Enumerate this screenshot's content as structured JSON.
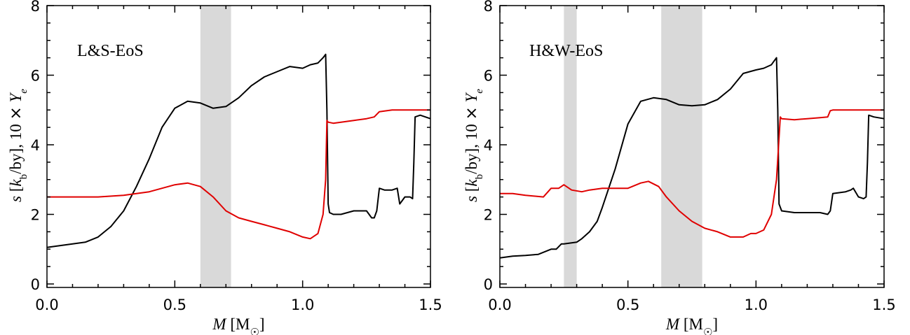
{
  "chart_data": [
    {
      "type": "line",
      "panel_label": "L&S-EoS",
      "xlabel": "M [M☉]",
      "ylabel": "s [k_b/by], 10 × Y_e",
      "xlim": [
        0.0,
        1.5
      ],
      "ylim": [
        -0.1,
        8.0
      ],
      "xticks": [
        "0.0",
        "0.5",
        "1.0",
        "1.5"
      ],
      "yticks": [
        "0",
        "2",
        "4",
        "6",
        "8"
      ],
      "grid": false,
      "shaded_regions": [
        [
          0.6,
          0.72
        ]
      ],
      "series": [
        {
          "color": "#000000",
          "x": [
            0.0,
            0.05,
            0.1,
            0.15,
            0.2,
            0.25,
            0.3,
            0.35,
            0.4,
            0.45,
            0.5,
            0.55,
            0.6,
            0.65,
            0.7,
            0.75,
            0.8,
            0.85,
            0.9,
            0.95,
            1.0,
            1.03,
            1.06,
            1.08,
            1.09,
            1.095,
            1.1,
            1.105,
            1.12,
            1.15,
            1.2,
            1.25,
            1.27,
            1.28,
            1.29,
            1.3,
            1.32,
            1.35,
            1.37,
            1.38,
            1.4,
            1.42,
            1.43,
            1.435,
            1.44,
            1.46,
            1.5
          ],
          "y": [
            1.05,
            1.1,
            1.15,
            1.2,
            1.35,
            1.65,
            2.1,
            2.8,
            3.6,
            4.5,
            5.05,
            5.25,
            5.2,
            5.05,
            5.1,
            5.35,
            5.7,
            5.95,
            6.1,
            6.25,
            6.2,
            6.3,
            6.35,
            6.5,
            6.6,
            5.0,
            2.3,
            2.05,
            2.0,
            2.0,
            2.1,
            2.1,
            1.9,
            1.9,
            2.1,
            2.75,
            2.7,
            2.7,
            2.75,
            2.3,
            2.5,
            2.5,
            2.45,
            3.5,
            4.8,
            4.85,
            4.75
          ]
        },
        {
          "color": "#e00000",
          "x": [
            0.0,
            0.1,
            0.2,
            0.3,
            0.35,
            0.4,
            0.45,
            0.5,
            0.55,
            0.6,
            0.65,
            0.7,
            0.75,
            0.8,
            0.85,
            0.9,
            0.95,
            1.0,
            1.03,
            1.06,
            1.08,
            1.09,
            1.095,
            1.1,
            1.12,
            1.15,
            1.2,
            1.25,
            1.28,
            1.3,
            1.35,
            1.4,
            1.45,
            1.5
          ],
          "y": [
            2.5,
            2.5,
            2.5,
            2.55,
            2.6,
            2.65,
            2.75,
            2.85,
            2.9,
            2.8,
            2.5,
            2.1,
            1.9,
            1.8,
            1.7,
            1.6,
            1.5,
            1.35,
            1.3,
            1.45,
            2.0,
            3.0,
            4.7,
            4.65,
            4.62,
            4.65,
            4.7,
            4.75,
            4.8,
            4.95,
            5.0,
            5.0,
            5.0,
            5.0
          ]
        }
      ]
    },
    {
      "type": "line",
      "panel_label": "H&W-EoS",
      "xlabel": "M [M☉]",
      "ylabel": "s [k_b/by], 10 × Y_e",
      "xlim": [
        0.0,
        1.5
      ],
      "ylim": [
        -0.1,
        8.0
      ],
      "xticks": [
        "0.0",
        "0.5",
        "1.0",
        "1.5"
      ],
      "yticks": [
        "0",
        "2",
        "4",
        "6",
        "8"
      ],
      "grid": false,
      "shaded_regions": [
        [
          0.25,
          0.3
        ],
        [
          0.63,
          0.79
        ]
      ],
      "series": [
        {
          "color": "#000000",
          "x": [
            0.0,
            0.05,
            0.1,
            0.15,
            0.2,
            0.22,
            0.24,
            0.25,
            0.3,
            0.32,
            0.35,
            0.38,
            0.4,
            0.45,
            0.5,
            0.55,
            0.6,
            0.65,
            0.7,
            0.75,
            0.8,
            0.85,
            0.9,
            0.95,
            1.0,
            1.03,
            1.06,
            1.07,
            1.08,
            1.085,
            1.09,
            1.1,
            1.15,
            1.2,
            1.25,
            1.28,
            1.29,
            1.3,
            1.35,
            1.37,
            1.38,
            1.4,
            1.42,
            1.43,
            1.435,
            1.44,
            1.46,
            1.5
          ],
          "y": [
            0.75,
            0.8,
            0.82,
            0.85,
            1.0,
            1.0,
            1.15,
            1.15,
            1.2,
            1.3,
            1.5,
            1.8,
            2.2,
            3.3,
            4.6,
            5.25,
            5.35,
            5.3,
            5.15,
            5.12,
            5.15,
            5.3,
            5.6,
            6.05,
            6.15,
            6.2,
            6.3,
            6.4,
            6.5,
            5.0,
            2.3,
            2.1,
            2.05,
            2.05,
            2.05,
            2.0,
            2.1,
            2.6,
            2.65,
            2.7,
            2.75,
            2.5,
            2.45,
            2.5,
            3.5,
            4.85,
            4.8,
            4.75
          ]
        },
        {
          "color": "#e00000",
          "x": [
            0.0,
            0.05,
            0.1,
            0.17,
            0.2,
            0.23,
            0.25,
            0.28,
            0.32,
            0.35,
            0.4,
            0.45,
            0.5,
            0.55,
            0.58,
            0.62,
            0.65,
            0.7,
            0.75,
            0.8,
            0.85,
            0.9,
            0.95,
            0.98,
            1.0,
            1.03,
            1.06,
            1.08,
            1.09,
            1.095,
            1.1,
            1.15,
            1.2,
            1.25,
            1.28,
            1.29,
            1.3,
            1.35,
            1.4,
            1.45,
            1.5
          ],
          "y": [
            2.6,
            2.6,
            2.55,
            2.5,
            2.75,
            2.75,
            2.85,
            2.7,
            2.65,
            2.7,
            2.75,
            2.75,
            2.75,
            2.9,
            2.95,
            2.8,
            2.5,
            2.1,
            1.8,
            1.6,
            1.5,
            1.35,
            1.35,
            1.45,
            1.45,
            1.55,
            2.0,
            3.0,
            4.2,
            4.8,
            4.75,
            4.72,
            4.75,
            4.78,
            4.8,
            4.98,
            5.0,
            5.0,
            5.0,
            5.0,
            5.0
          ]
        }
      ]
    }
  ]
}
